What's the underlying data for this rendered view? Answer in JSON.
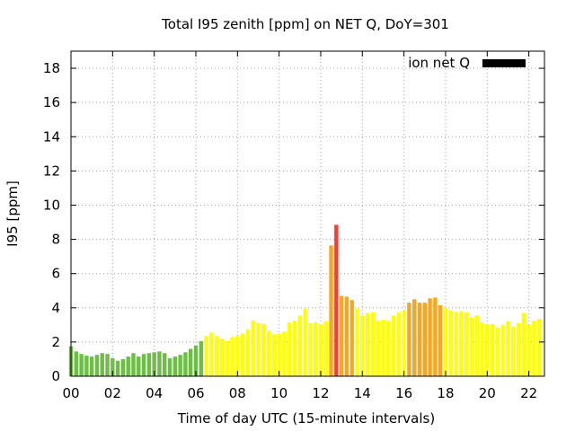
{
  "chart_data": {
    "type": "bar",
    "title": "Total I95 zenith [ppm] on NET Q, DoY=301",
    "xlabel": "Time of day UTC (15-minute intervals)",
    "ylabel": "I95 [ppm]",
    "legend": {
      "label": "ion net Q",
      "color": "#000000",
      "placement": "top-right"
    },
    "x_ticks": [
      "00",
      "02",
      "04",
      "06",
      "08",
      "10",
      "12",
      "14",
      "16",
      "18",
      "20",
      "22"
    ],
    "x_tick_values": [
      0,
      2,
      4,
      6,
      8,
      10,
      12,
      14,
      16,
      18,
      20,
      22
    ],
    "y_ticks": [
      "0",
      "2",
      "4",
      "6",
      "8",
      "10",
      "12",
      "14",
      "16",
      "18"
    ],
    "y_tick_values": [
      0,
      2,
      4,
      6,
      8,
      10,
      12,
      14,
      16,
      18
    ],
    "xlim": [
      0,
      22.75
    ],
    "ylim": [
      0,
      19
    ],
    "bar_width_hours": 0.19,
    "grid": true,
    "color_scale": {
      "green": "#6cbe45",
      "yellow": "#ffff00",
      "orange": "#f5a623",
      "red": "#e3443b"
    },
    "bars": [
      {
        "t": 0.0,
        "v": 1.75,
        "c": "green"
      },
      {
        "t": 0.25,
        "v": 1.45,
        "c": "green"
      },
      {
        "t": 0.5,
        "v": 1.3,
        "c": "green"
      },
      {
        "t": 0.75,
        "v": 1.2,
        "c": "green"
      },
      {
        "t": 1.0,
        "v": 1.15,
        "c": "green"
      },
      {
        "t": 1.25,
        "v": 1.25,
        "c": "green"
      },
      {
        "t": 1.5,
        "v": 1.35,
        "c": "green"
      },
      {
        "t": 1.75,
        "v": 1.3,
        "c": "green"
      },
      {
        "t": 2.0,
        "v": 1.05,
        "c": "green"
      },
      {
        "t": 2.25,
        "v": 0.9,
        "c": "green"
      },
      {
        "t": 2.5,
        "v": 1.0,
        "c": "green"
      },
      {
        "t": 2.75,
        "v": 1.15,
        "c": "green"
      },
      {
        "t": 3.0,
        "v": 1.35,
        "c": "green"
      },
      {
        "t": 3.25,
        "v": 1.15,
        "c": "green"
      },
      {
        "t": 3.5,
        "v": 1.3,
        "c": "green"
      },
      {
        "t": 3.75,
        "v": 1.35,
        "c": "green"
      },
      {
        "t": 4.0,
        "v": 1.4,
        "c": "green"
      },
      {
        "t": 4.25,
        "v": 1.45,
        "c": "green"
      },
      {
        "t": 4.5,
        "v": 1.35,
        "c": "green"
      },
      {
        "t": 4.75,
        "v": 1.05,
        "c": "green"
      },
      {
        "t": 5.0,
        "v": 1.15,
        "c": "green"
      },
      {
        "t": 5.25,
        "v": 1.25,
        "c": "green"
      },
      {
        "t": 5.5,
        "v": 1.4,
        "c": "green"
      },
      {
        "t": 5.75,
        "v": 1.6,
        "c": "green"
      },
      {
        "t": 6.0,
        "v": 1.8,
        "c": "green"
      },
      {
        "t": 6.25,
        "v": 2.05,
        "c": "green"
      },
      {
        "t": 6.5,
        "v": 2.35,
        "c": "yellow"
      },
      {
        "t": 6.75,
        "v": 2.55,
        "c": "yellow"
      },
      {
        "t": 7.0,
        "v": 2.35,
        "c": "yellow"
      },
      {
        "t": 7.25,
        "v": 2.2,
        "c": "yellow"
      },
      {
        "t": 7.5,
        "v": 2.05,
        "c": "yellow"
      },
      {
        "t": 7.75,
        "v": 2.3,
        "c": "yellow"
      },
      {
        "t": 8.0,
        "v": 2.35,
        "c": "yellow"
      },
      {
        "t": 8.25,
        "v": 2.5,
        "c": "yellow"
      },
      {
        "t": 8.5,
        "v": 2.75,
        "c": "yellow"
      },
      {
        "t": 8.75,
        "v": 3.25,
        "c": "yellow"
      },
      {
        "t": 9.0,
        "v": 3.1,
        "c": "yellow"
      },
      {
        "t": 9.25,
        "v": 3.05,
        "c": "yellow"
      },
      {
        "t": 9.5,
        "v": 2.65,
        "c": "yellow"
      },
      {
        "t": 9.75,
        "v": 2.45,
        "c": "yellow"
      },
      {
        "t": 10.0,
        "v": 2.5,
        "c": "yellow"
      },
      {
        "t": 10.25,
        "v": 2.6,
        "c": "yellow"
      },
      {
        "t": 10.5,
        "v": 3.15,
        "c": "yellow"
      },
      {
        "t": 10.75,
        "v": 3.25,
        "c": "yellow"
      },
      {
        "t": 11.0,
        "v": 3.55,
        "c": "yellow"
      },
      {
        "t": 11.25,
        "v": 3.95,
        "c": "yellow"
      },
      {
        "t": 11.5,
        "v": 3.1,
        "c": "yellow"
      },
      {
        "t": 11.75,
        "v": 3.15,
        "c": "yellow"
      },
      {
        "t": 12.0,
        "v": 3.05,
        "c": "yellow"
      },
      {
        "t": 12.25,
        "v": 3.2,
        "c": "yellow"
      },
      {
        "t": 12.5,
        "v": 7.65,
        "c": "orange"
      },
      {
        "t": 12.75,
        "v": 8.85,
        "c": "red"
      },
      {
        "t": 13.0,
        "v": 4.7,
        "c": "orange"
      },
      {
        "t": 13.25,
        "v": 4.65,
        "c": "orange"
      },
      {
        "t": 13.5,
        "v": 4.45,
        "c": "orange"
      },
      {
        "t": 13.75,
        "v": 3.95,
        "c": "yellow"
      },
      {
        "t": 14.0,
        "v": 3.55,
        "c": "yellow"
      },
      {
        "t": 14.25,
        "v": 3.7,
        "c": "yellow"
      },
      {
        "t": 14.5,
        "v": 3.75,
        "c": "yellow"
      },
      {
        "t": 14.75,
        "v": 3.25,
        "c": "yellow"
      },
      {
        "t": 15.0,
        "v": 3.3,
        "c": "yellow"
      },
      {
        "t": 15.25,
        "v": 3.25,
        "c": "yellow"
      },
      {
        "t": 15.5,
        "v": 3.55,
        "c": "yellow"
      },
      {
        "t": 15.75,
        "v": 3.75,
        "c": "yellow"
      },
      {
        "t": 16.0,
        "v": 3.85,
        "c": "yellow"
      },
      {
        "t": 16.25,
        "v": 4.3,
        "c": "orange"
      },
      {
        "t": 16.5,
        "v": 4.5,
        "c": "orange"
      },
      {
        "t": 16.75,
        "v": 4.3,
        "c": "orange"
      },
      {
        "t": 17.0,
        "v": 4.3,
        "c": "orange"
      },
      {
        "t": 17.25,
        "v": 4.55,
        "c": "orange"
      },
      {
        "t": 17.5,
        "v": 4.6,
        "c": "orange"
      },
      {
        "t": 17.75,
        "v": 4.15,
        "c": "orange"
      },
      {
        "t": 18.0,
        "v": 4.0,
        "c": "yellow"
      },
      {
        "t": 18.25,
        "v": 3.85,
        "c": "yellow"
      },
      {
        "t": 18.5,
        "v": 3.75,
        "c": "yellow"
      },
      {
        "t": 18.75,
        "v": 3.8,
        "c": "yellow"
      },
      {
        "t": 19.0,
        "v": 3.75,
        "c": "yellow"
      },
      {
        "t": 19.25,
        "v": 3.45,
        "c": "yellow"
      },
      {
        "t": 19.5,
        "v": 3.55,
        "c": "yellow"
      },
      {
        "t": 19.75,
        "v": 3.15,
        "c": "yellow"
      },
      {
        "t": 20.0,
        "v": 3.05,
        "c": "yellow"
      },
      {
        "t": 20.25,
        "v": 3.05,
        "c": "yellow"
      },
      {
        "t": 20.5,
        "v": 2.85,
        "c": "yellow"
      },
      {
        "t": 20.75,
        "v": 3.0,
        "c": "yellow"
      },
      {
        "t": 21.0,
        "v": 3.2,
        "c": "yellow"
      },
      {
        "t": 21.25,
        "v": 2.9,
        "c": "yellow"
      },
      {
        "t": 21.5,
        "v": 3.1,
        "c": "yellow"
      },
      {
        "t": 21.75,
        "v": 3.7,
        "c": "yellow"
      },
      {
        "t": 22.0,
        "v": 3.0,
        "c": "yellow"
      },
      {
        "t": 22.25,
        "v": 3.25,
        "c": "yellow"
      },
      {
        "t": 22.5,
        "v": 3.35,
        "c": "yellow"
      }
    ]
  }
}
